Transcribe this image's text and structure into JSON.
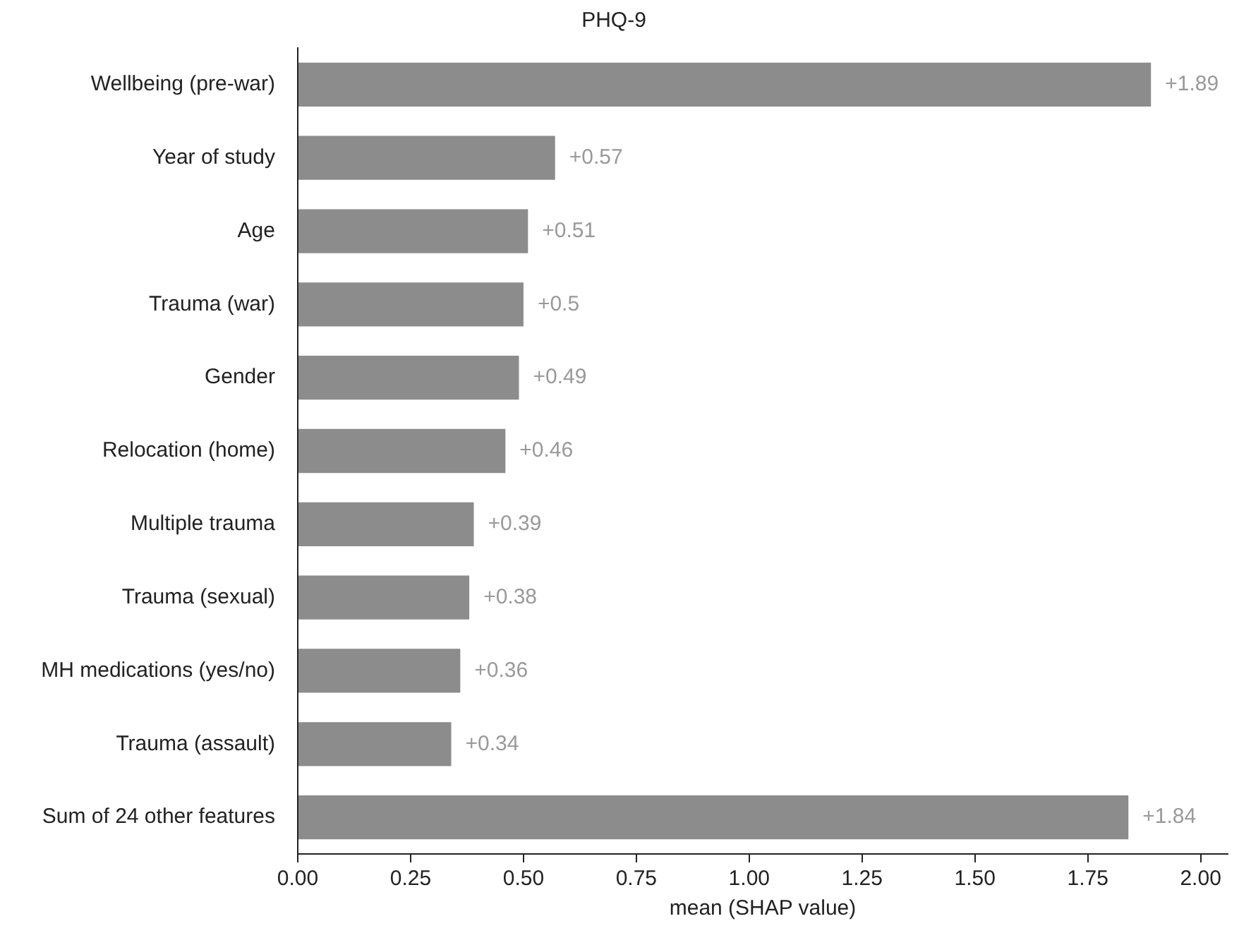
{
  "chart_data": {
    "type": "bar",
    "orientation": "horizontal",
    "title": "PHQ-9",
    "xlabel": "mean (SHAP value)",
    "categories": [
      "Wellbeing (pre-war)",
      "Year of study",
      "Age",
      "Trauma (war)",
      "Gender",
      "Relocation (home)",
      "Multiple trauma",
      "Trauma (sexual)",
      "MH medications (yes/no)",
      "Trauma (assault)",
      "Sum of 24 other features"
    ],
    "values": [
      1.89,
      0.57,
      0.51,
      0.5,
      0.49,
      0.46,
      0.39,
      0.38,
      0.36,
      0.34,
      1.84
    ],
    "value_labels": [
      "+1.89",
      "+0.57",
      "+0.51",
      "+0.5",
      "+0.49",
      "+0.46",
      "+0.39",
      "+0.38",
      "+0.36",
      "+0.34",
      "+1.84"
    ],
    "color": "#8c8c8c",
    "xlim": [
      0,
      2.06
    ],
    "xticks": [
      {
        "value": 0,
        "label": "0.00"
      },
      {
        "value": 0.25,
        "label": "0.25"
      },
      {
        "value": 0.5,
        "label": "0.50"
      },
      {
        "value": 0.75,
        "label": "0.75"
      },
      {
        "value": 1,
        "label": "1.00"
      },
      {
        "value": 1.25,
        "label": "1.25"
      },
      {
        "value": 1.5,
        "label": "1.50"
      },
      {
        "value": 1.75,
        "label": "1.75"
      },
      {
        "value": 2,
        "label": "2.00"
      }
    ],
    "grid": false,
    "legend": false
  }
}
